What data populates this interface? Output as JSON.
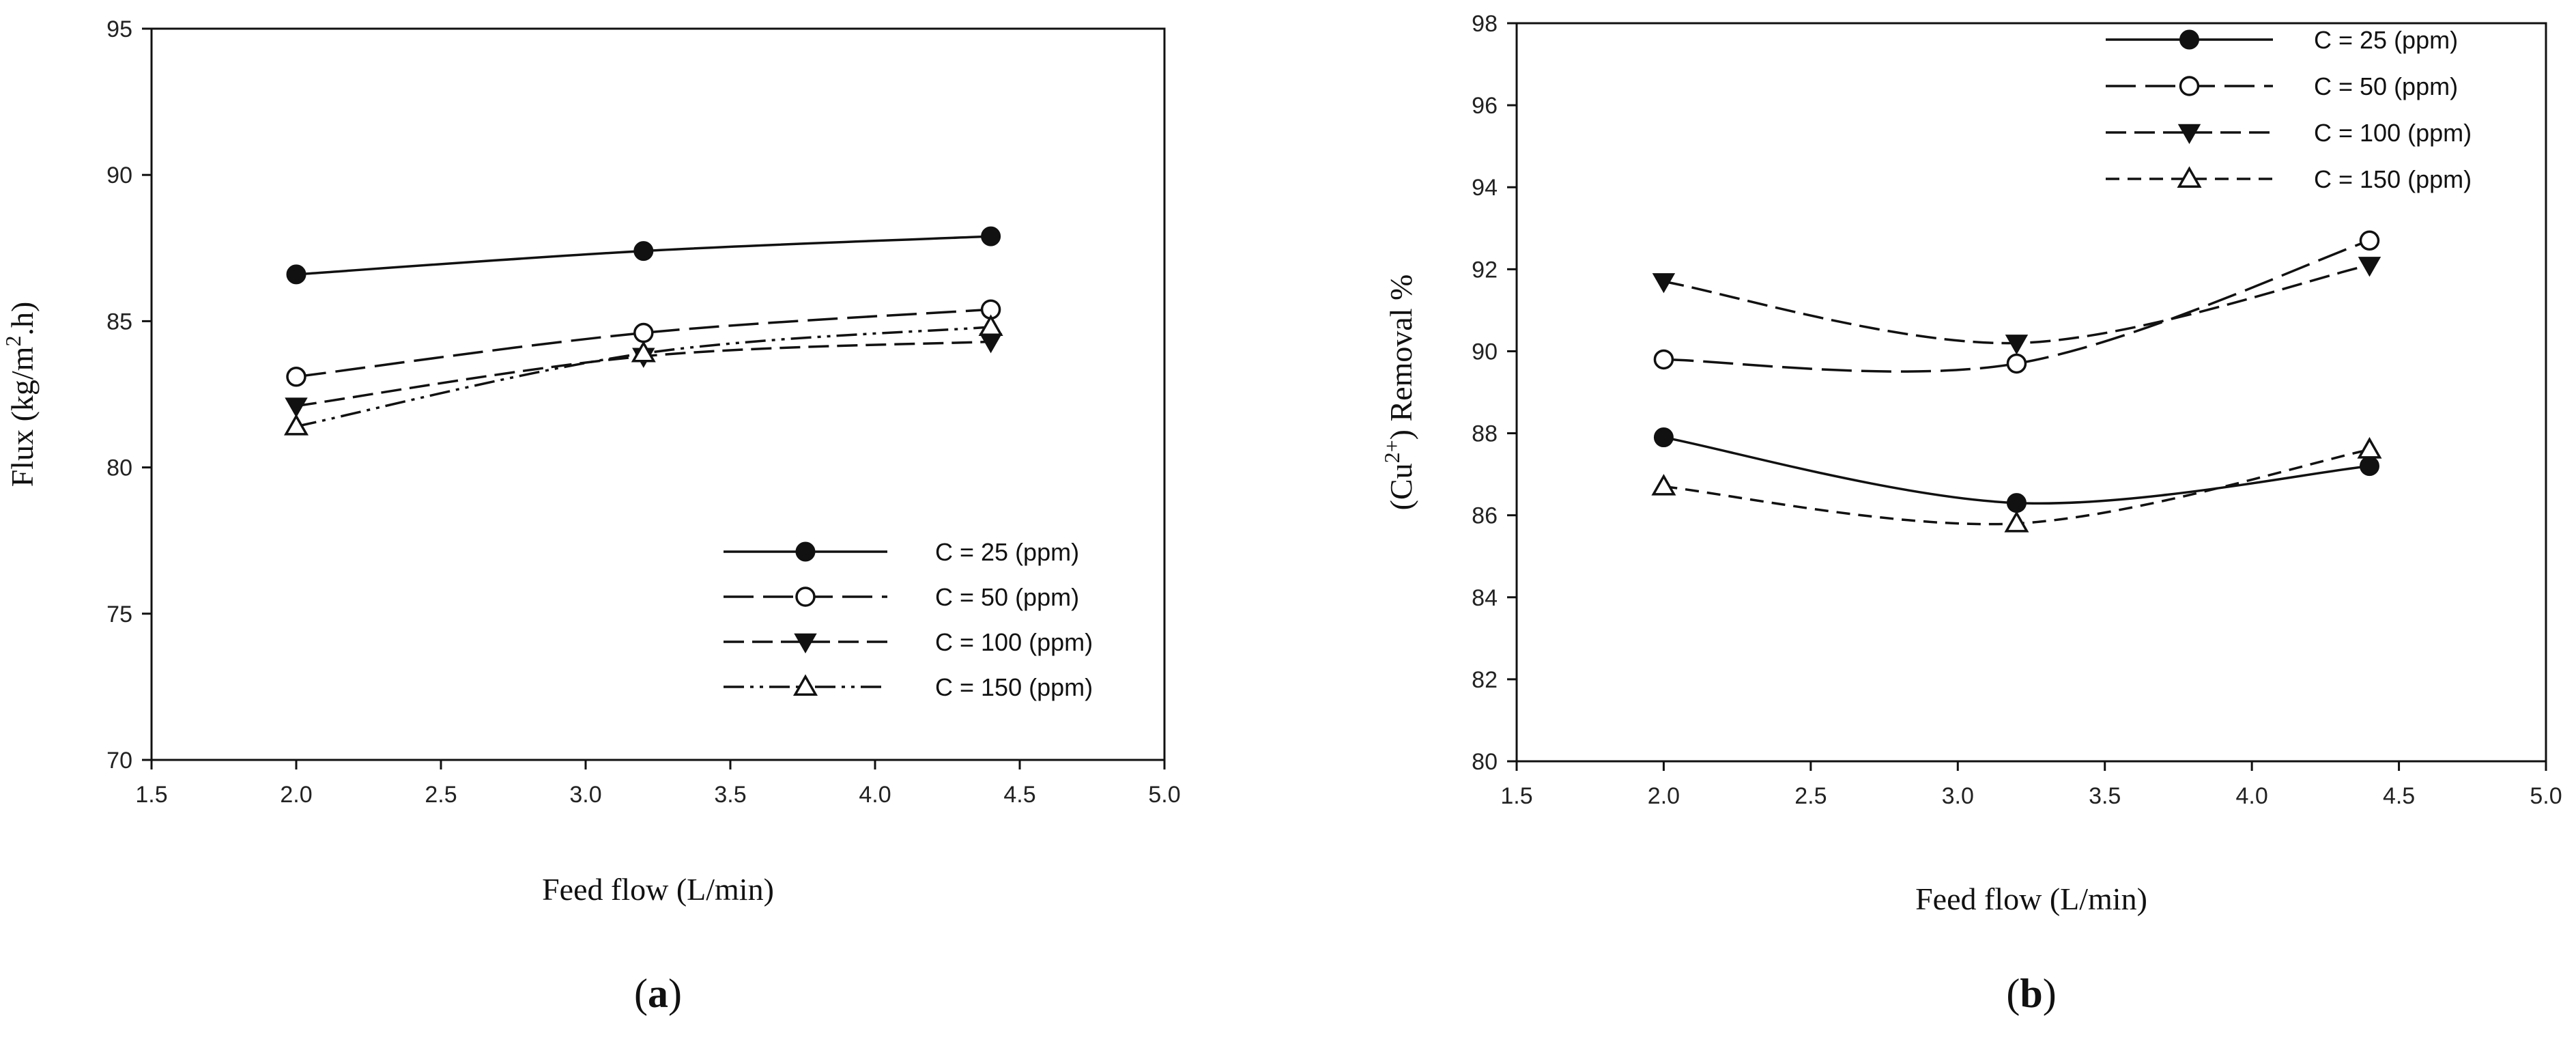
{
  "chart_data": [
    {
      "id": "a",
      "type": "line",
      "panel_label": "a",
      "xlabel": "Feed flow (L/min)",
      "ylabel_parts": [
        "Flux (kg/m",
        "2",
        ".h)"
      ],
      "xlim": [
        1.5,
        5.0
      ],
      "ylim": [
        70,
        95
      ],
      "xticks": [
        "1.5",
        "2.0",
        "2.5",
        "3.0",
        "3.5",
        "4.0",
        "4.5",
        "5.0"
      ],
      "yticks": [
        "70",
        "75",
        "80",
        "85",
        "90",
        "95"
      ],
      "legend_position": "bottom-right",
      "x": [
        2.0,
        3.2,
        4.4
      ],
      "series": [
        {
          "name": "C = 25 (ppm)",
          "values": [
            86.6,
            87.4,
            87.9
          ],
          "marker": "circle-filled",
          "dash": "solid"
        },
        {
          "name": "C = 50 (ppm)",
          "values": [
            83.1,
            84.6,
            85.4
          ],
          "marker": "circle-open",
          "dash": "longdash"
        },
        {
          "name": "C = 100 (ppm)",
          "values": [
            82.1,
            83.8,
            84.3
          ],
          "marker": "triangle-down-filled",
          "dash": "dash"
        },
        {
          "name": "C = 150 (ppm)",
          "values": [
            81.4,
            83.9,
            84.8
          ],
          "marker": "triangle-up-open",
          "dash": "dashdotdot"
        }
      ]
    },
    {
      "id": "b",
      "type": "line",
      "panel_label": "b",
      "xlabel": "Feed flow (L/min)",
      "ylabel_parts": [
        "(Cu",
        "2+",
        ") Removal %"
      ],
      "xlim": [
        1.5,
        5.0
      ],
      "ylim": [
        80,
        98
      ],
      "xticks": [
        "1.5",
        "2.0",
        "2.5",
        "3.0",
        "3.5",
        "4.0",
        "4.5",
        "5.0"
      ],
      "yticks": [
        "80",
        "82",
        "84",
        "86",
        "88",
        "90",
        "92",
        "94",
        "96",
        "98"
      ],
      "legend_position": "top-right",
      "x": [
        2.0,
        3.2,
        4.4
      ],
      "series": [
        {
          "name": "C = 25 (ppm)",
          "values": [
            87.9,
            86.3,
            87.2
          ],
          "marker": "circle-filled",
          "dash": "solid"
        },
        {
          "name": "C = 50 (ppm)",
          "values": [
            89.8,
            89.7,
            92.7
          ],
          "marker": "circle-open",
          "dash": "longdash"
        },
        {
          "name": "C = 100 (ppm)",
          "values": [
            91.7,
            90.2,
            92.1
          ],
          "marker": "triangle-down-filled",
          "dash": "dash"
        },
        {
          "name": "C = 150 (ppm)",
          "values": [
            86.7,
            85.8,
            87.6
          ],
          "marker": "triangle-up-open",
          "dash": "shortdash"
        }
      ]
    }
  ]
}
